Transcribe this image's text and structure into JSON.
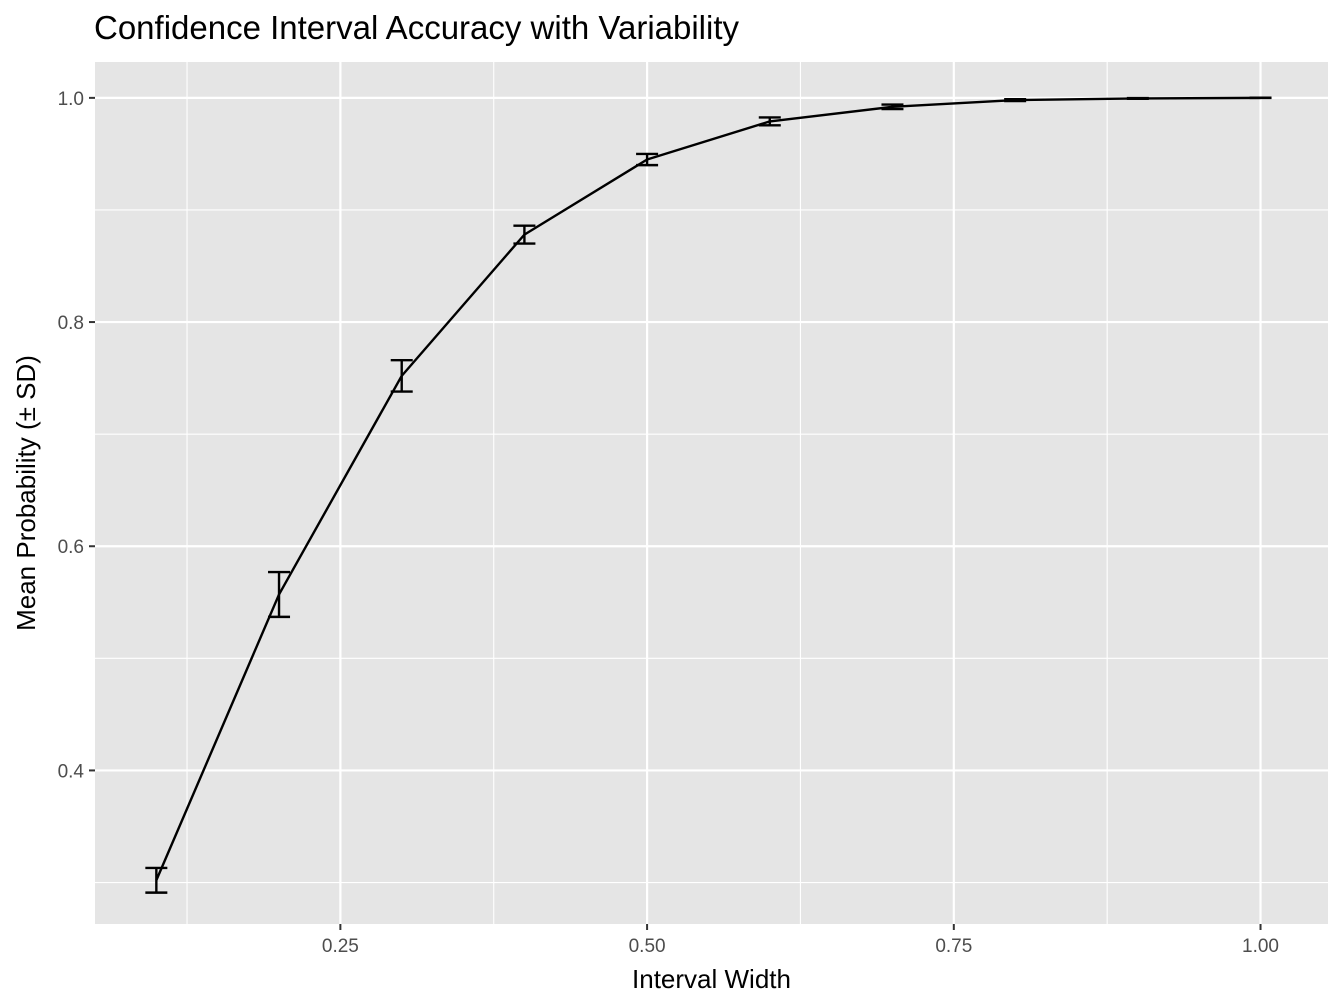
{
  "chart_data": {
    "type": "line",
    "title": "Confidence Interval Accuracy with Variability",
    "xlabel": "Interval Width",
    "ylabel": "Mean Probability (± SD)",
    "xlim": [
      0.05,
      1.055
    ],
    "ylim": [
      0.263,
      1.032
    ],
    "x_ticks": [
      {
        "value": 0.25,
        "label": "0.25"
      },
      {
        "value": 0.5,
        "label": "0.50"
      },
      {
        "value": 0.75,
        "label": "0.75"
      },
      {
        "value": 1.0,
        "label": "1.00"
      }
    ],
    "y_ticks": [
      {
        "value": 0.4,
        "label": "0.4"
      },
      {
        "value": 0.6,
        "label": "0.6"
      },
      {
        "value": 0.8,
        "label": "0.8"
      },
      {
        "value": 1.0,
        "label": "1.0"
      }
    ],
    "x_minor": [
      0.125,
      0.375,
      0.625,
      0.875
    ],
    "y_minor": [
      0.3,
      0.5,
      0.7,
      0.9
    ],
    "grid": true,
    "series": [
      {
        "x": [
          0.1,
          0.2,
          0.3,
          0.4,
          0.5,
          0.6,
          0.7,
          0.8,
          0.9,
          1.0
        ],
        "mean": [
          0.302,
          0.557,
          0.752,
          0.878,
          0.945,
          0.979,
          0.992,
          0.998,
          0.9995,
          1.0
        ],
        "sd": [
          0.011,
          0.02,
          0.014,
          0.008,
          0.005,
          0.0035,
          0.002,
          0.0008,
          0.0003,
          0.0001
        ],
        "color": "#000000"
      }
    ],
    "panel_background": "#e5e5e5",
    "grid_color": "#ffffff"
  }
}
